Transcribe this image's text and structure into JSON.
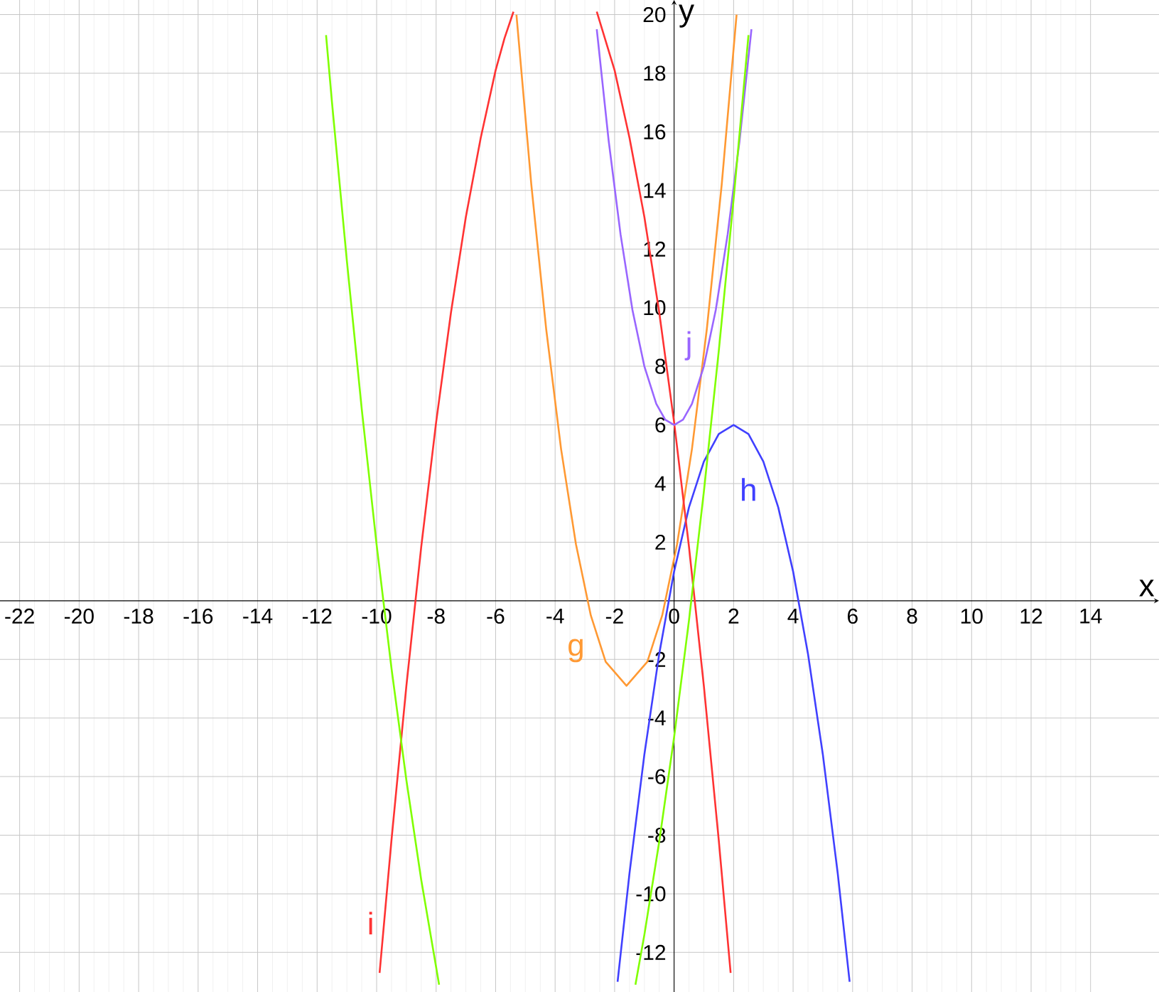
{
  "chart_data": {
    "type": "line",
    "xlabel": "x",
    "ylabel": "y",
    "xlim": [
      -22.66,
      16.3
    ],
    "ylim": [
      -13.35,
      20.5
    ],
    "xticks": [
      -22,
      -20,
      -18,
      -16,
      -14,
      -12,
      -10,
      -8,
      -6,
      -4,
      -2,
      0,
      2,
      4,
      6,
      8,
      10,
      12,
      14
    ],
    "yticks": [
      -12,
      -10,
      -8,
      -6,
      -4,
      -2,
      2,
      4,
      6,
      8,
      10,
      12,
      14,
      16,
      18,
      20
    ],
    "grid": true,
    "marker": "none",
    "line_style": "solid",
    "series": [
      {
        "name": "g",
        "color": "#ff9933",
        "x": [
          -5.3,
          -4.8,
          -4.3,
          -3.8,
          -3.3,
          -2.8,
          -2.3,
          -1.6,
          -0.9,
          -0.4,
          0.1,
          0.6,
          1.1,
          1.6,
          2.1
        ],
        "values": [
          20.0,
          14.2,
          9.27,
          5.18,
          1.93,
          -0.5,
          -2.08,
          -2.9,
          -2.08,
          -0.5,
          1.93,
          5.18,
          9.27,
          14.2,
          20.0
        ]
      },
      {
        "name": "h",
        "color": "#4040ff",
        "x": [
          -1.9,
          -1.5,
          -1,
          -0.5,
          0,
          0.5,
          1,
          1.5,
          2,
          2.5,
          3,
          3.5,
          4,
          4.5,
          5,
          5.5,
          5.9
        ],
        "values": [
          -13.0,
          -9.3,
          -5.25,
          -1.81,
          1,
          3.19,
          4.75,
          5.69,
          6,
          5.69,
          4.75,
          3.19,
          1,
          -1.81,
          -5.25,
          -9.3,
          -13.0
        ]
      },
      {
        "name": "i",
        "color": "#ff3333",
        "x": [
          -9.9,
          -9.5,
          -9,
          -8.5,
          -8,
          -7.5,
          -7,
          -6.5,
          -6,
          -5.7,
          -5.4,
          -4,
          -2.6,
          -2,
          -1.5,
          -1,
          -0.5,
          0,
          0.5,
          1,
          1.5,
          1.9
        ],
        "values": [
          -12.7,
          -8.16,
          -2.91,
          1.84,
          6.09,
          9.84,
          13.1,
          15.8,
          18.1,
          19.2,
          20.1,
          null,
          20.1,
          18.1,
          15.8,
          13.1,
          9.84,
          6.09,
          1.84,
          -2.91,
          -8.16,
          -12.7
        ]
      },
      {
        "name": "j",
        "color": "#9966ff",
        "x": [
          -2.6,
          -2.2,
          -1.8,
          -1.4,
          -1,
          -0.6,
          -0.3,
          0,
          0.3,
          0.6,
          1,
          1.4,
          1.8,
          2.2,
          2.6
        ],
        "values": [
          19.5,
          15.7,
          12.5,
          9.92,
          8,
          6.72,
          6.18,
          6,
          6.18,
          6.72,
          8,
          9.92,
          12.5,
          15.7,
          19.5
        ]
      },
      {
        "color": "#80ff00",
        "x": [
          -11.7,
          -11.5,
          -11,
          -10.5,
          -10,
          -9.5,
          -9,
          -8.5,
          -8,
          -7.9,
          -4.6,
          -1.3,
          -1,
          -0.5,
          0,
          0.5,
          1,
          1.5,
          2,
          2.5
        ],
        "values": [
          19.3,
          17.0,
          11.6,
          6.54,
          1.91,
          -2.31,
          -6.12,
          -9.53,
          -12.5,
          -13.1,
          null,
          -13.1,
          -11.4,
          -8.22,
          -4.65,
          -0.67,
          3.72,
          8.51,
          13.7,
          19.3
        ]
      }
    ]
  }
}
